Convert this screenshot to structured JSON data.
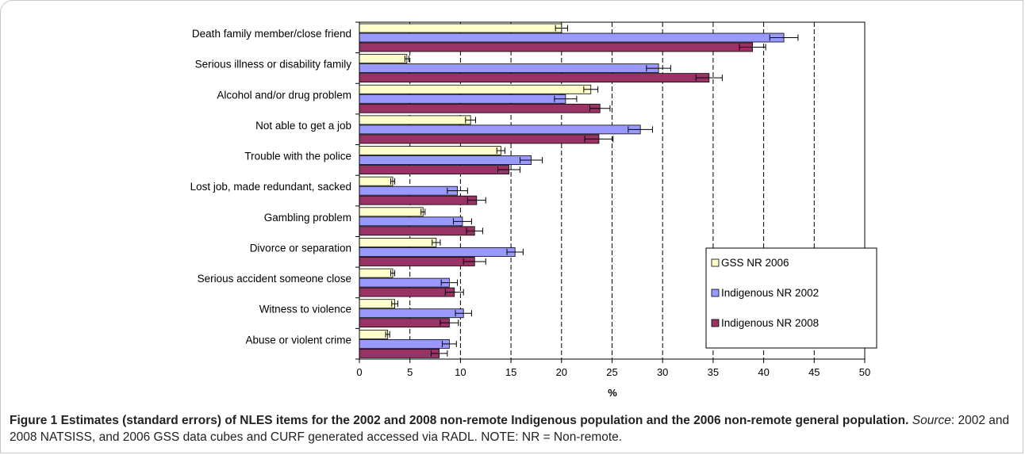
{
  "chart_data": {
    "type": "bar",
    "orientation": "horizontal",
    "categories": [
      "Death family member/close friend",
      "Serious illness or disability family",
      "Alcohol and/or drug problem",
      "Not able to get a job",
      "Trouble with the police",
      "Lost job, made redundant, sacked",
      "Gambling problem",
      "Divorce or separation",
      "Serious accident someone close",
      "Witness to violence",
      "Abuse or violent crime"
    ],
    "series": [
      {
        "name": "GSS NR 2006",
        "color": "#FFFFCC",
        "values": [
          20.0,
          4.7,
          22.9,
          11.0,
          14.0,
          3.3,
          6.3,
          7.6,
          3.3,
          3.5,
          2.8
        ],
        "errors": [
          0.6,
          0.2,
          0.7,
          0.5,
          0.4,
          0.2,
          0.2,
          0.4,
          0.2,
          0.3,
          0.2
        ]
      },
      {
        "name": "Indigenous NR 2002",
        "color": "#9999FF",
        "values": [
          42.0,
          29.6,
          20.4,
          27.8,
          17.0,
          9.7,
          10.2,
          15.4,
          8.9,
          10.3,
          8.9
        ],
        "errors": [
          1.4,
          1.2,
          1.1,
          1.2,
          1.1,
          1.0,
          0.9,
          0.8,
          0.8,
          0.8,
          0.7
        ]
      },
      {
        "name": "Indigenous NR 2008",
        "color": "#993366",
        "values": [
          38.9,
          34.6,
          23.8,
          23.7,
          14.8,
          11.6,
          11.4,
          11.4,
          9.4,
          8.9,
          7.9
        ],
        "errors": [
          1.3,
          1.3,
          1.0,
          1.4,
          1.1,
          0.9,
          0.8,
          1.1,
          0.9,
          0.9,
          0.8
        ]
      }
    ],
    "xticks": [
      "0",
      "5",
      "10",
      "15",
      "20",
      "25",
      "30",
      "35",
      "40",
      "45",
      "50"
    ],
    "xlim": [
      0,
      50
    ],
    "xlabel": "%",
    "grid": "vertical dashed",
    "legend_position": "bottom-right"
  },
  "caption": {
    "title": "Figure 1 Estimates (standard errors) of NLES items for the 2002 and 2008 non-remote Indigenous population and the 2006 non-remote general population.",
    "source_label": "Source",
    "source_text": ": 2002 and 2008 NATSISS, and 2006 GSS data cubes and CURF generated accessed via RADL. NOTE: NR = Non-remote."
  }
}
